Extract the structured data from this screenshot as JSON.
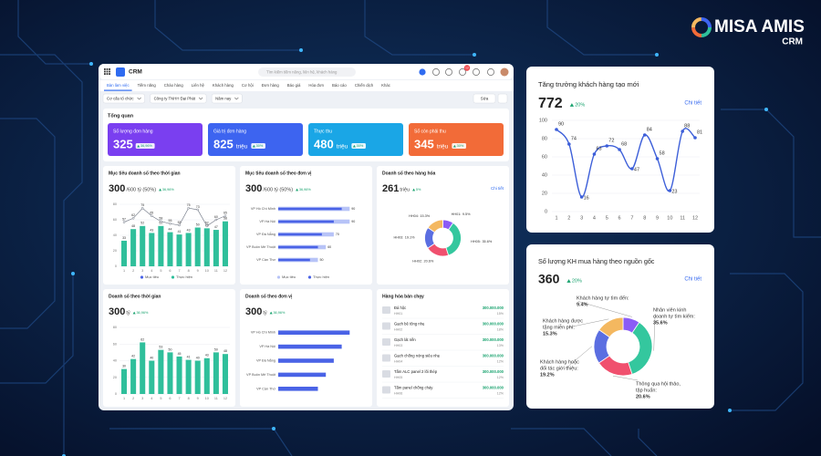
{
  "brand": {
    "name": "MISA AMIS",
    "product": "CRM"
  },
  "dashboard": {
    "app_name": "CRM",
    "search_placeholder": "Tìm kiếm tiềm năng, liên hệ, khách hàng",
    "notification_badge": "12",
    "nav": [
      "Bàn làm việc",
      "Tiềm năng",
      "Chào hàng",
      "Liên hệ",
      "Khách hàng",
      "Cơ hội",
      "Đơn hàng",
      "Báo giá",
      "Hóa đơn",
      "Báo cáo",
      "Chiến dịch",
      "Khác"
    ],
    "filters": [
      "Cơ cấu tổ chức",
      "Công ty TNHH Đại Phát",
      "Năm nay"
    ],
    "edit_button": "Sửa",
    "overview": {
      "title": "Tổng quan",
      "kpis": [
        {
          "label": "Số lượng đơn hàng",
          "value": 325,
          "change": "36,96%",
          "color": "#7a3ff0"
        },
        {
          "label": "Giá trị đơn hàng",
          "value": 825,
          "unit": "triệu",
          "change": "30%",
          "color": "#3d64f0"
        },
        {
          "label": "Thực thu",
          "value": 480,
          "unit": "triệu",
          "change": "30%",
          "color": "#1aa6e6"
        },
        {
          "label": "Số còn phải thu",
          "value": 345,
          "unit": "triệu",
          "change": "30%",
          "color": "#f26b38"
        }
      ]
    },
    "panels": [
      {
        "title": "Mục tiêu doanh số theo thời gian",
        "headline": 300,
        "headline_detail": "/600 tỷ (50%)",
        "change": "36,96%",
        "chart": {
          "type": "bar-line",
          "categories": [
            "1",
            "2",
            "3",
            "4",
            "5",
            "6",
            "7",
            "8",
            "9",
            "10",
            "11",
            "12"
          ],
          "ylim": [
            0,
            80
          ],
          "yticks": [
            0,
            20,
            40,
            60,
            80
          ],
          "series": [
            {
              "name": "Mục tiêu",
              "color": "#4a63e6",
              "values": [
                57,
                62,
                75,
                65,
                58,
                55,
                53,
                75,
                73,
                52,
                60,
                65
              ]
            },
            {
              "name": "Thực hiện",
              "color": "#2fbf9b",
              "values": [
                33,
                48,
                52,
                43,
                52,
                44,
                41,
                43,
                50,
                49,
                47,
                58
              ]
            }
          ]
        }
      },
      {
        "title": "Mục tiêu doanh số theo đơn vị",
        "headline": 300,
        "headline_detail": "/600 tỷ (50%)",
        "change": "36,96%",
        "chart": {
          "type": "hbar",
          "categories": [
            "VP Hồ Chí Minh",
            "VP Hà Nội",
            "VP Đà Nẵng",
            "VP Buôn Mê Thuột",
            "VP Cần Thơ"
          ],
          "xlim": [
            0,
            100
          ],
          "series": [
            {
              "name": "Mục tiêu",
              "color": "#b7c3f7",
              "values": [
                90,
                90,
                70,
                60,
                50
              ]
            },
            {
              "name": "Thực hiện",
              "color": "#4a63e6",
              "values": [
                80,
                70,
                55,
                50,
                40
              ]
            }
          ]
        }
      },
      {
        "title": "Doanh số theo hàng hóa",
        "headline": 261,
        "headline_detail": "triệu",
        "change": "5%",
        "link": "Chi tiết",
        "chart": {
          "type": "donut",
          "segments": [
            {
              "name": "HH01:",
              "value": 9.5,
              "value_label": "9.5%",
              "color": "#8b5cf6"
            },
            {
              "name": "HH05:",
              "value": 35.6,
              "value_label": "35.6%",
              "color": "#34c79e"
            },
            {
              "name": "HH02:",
              "value": 20.6,
              "value_label": "20.6%",
              "color": "#f0506e"
            },
            {
              "name": "HH03:",
              "value": 19.1,
              "value_label": "19.1%",
              "color": "#5b6ee1"
            },
            {
              "name": "HH04:",
              "value": 15.3,
              "value_label": "15.3%",
              "color": "#f4b860"
            }
          ]
        }
      },
      {
        "title": "Doanh số theo thời gian",
        "headline": 300,
        "headline_detail": "tỷ",
        "change": "36,96%",
        "chart": {
          "type": "bar",
          "categories": [
            "1",
            "2",
            "3",
            "4",
            "5",
            "6",
            "7",
            "8",
            "9",
            "10",
            "11",
            "12"
          ],
          "ylim": [
            0,
            80
          ],
          "yticks": [
            0,
            20,
            40,
            60,
            80
          ],
          "series": [
            {
              "color": "#2fbf9b",
              "values": [
                30,
                42,
                62,
                40,
                53,
                50,
                45,
                41,
                40,
                43,
                50,
                48
              ]
            }
          ]
        }
      },
      {
        "title": "Doanh số theo đơn vị",
        "headline": 300,
        "headline_detail": "tỷ",
        "change": "36,96%",
        "chart": {
          "type": "hbar",
          "categories": [
            "VP Hồ Chí Minh",
            "VP Hà Nội",
            "VP Đà Nẵng",
            "VP Buôn Mê Thuột",
            "VP Cần Thơ"
          ],
          "xlim": [
            0,
            100
          ],
          "series": [
            {
              "color": "#4a63e6",
              "values": [
                90,
                80,
                70,
                60,
                50
              ]
            }
          ]
        }
      },
      {
        "title": "Hàng hóa bán chạy",
        "items": [
          {
            "name": "Đá hộc",
            "code": "HH01",
            "amount": "300.000.000",
            "share": "15%"
          },
          {
            "name": "Gạch bê tông nhẹ",
            "code": "HH02",
            "amount": "300.000.000",
            "share": "18%"
          },
          {
            "name": "Gạch lát nền",
            "code": "HH03",
            "amount": "300.000.000",
            "share": "13%"
          },
          {
            "name": "Gạch chống nóng siêu nhẹ",
            "code": "HH04",
            "amount": "300.000.000",
            "share": "12%"
          },
          {
            "name": "Tấm ALC panel 2 lõi thép",
            "code": "HH05",
            "amount": "300.000.000",
            "share": "12%"
          },
          {
            "name": "Tấm panel chống cháy",
            "code": "HH06",
            "amount": "300.000.000",
            "share": "12%"
          }
        ]
      }
    ]
  },
  "growth_card": {
    "title": "Tăng trưởng khách hàng tạo mới",
    "total": 772,
    "change": "20%",
    "link": "Chi tiết",
    "chart": {
      "type": "line",
      "categories": [
        "1",
        "2",
        "3",
        "4",
        "5",
        "6",
        "7",
        "8",
        "9",
        "10",
        "11",
        "12"
      ],
      "values": [
        90,
        74,
        16,
        63,
        72,
        68,
        47,
        84,
        58,
        23,
        88,
        81
      ],
      "color": "#3d5fd9",
      "ylim": [
        0,
        100
      ],
      "yticks": [
        0,
        20,
        40,
        60,
        80,
        100
      ],
      "grid": true
    }
  },
  "source_card": {
    "title": "Số lượng KH mua hàng theo nguồn gốc",
    "total": 360,
    "change": "20%",
    "link": "Chi tiết",
    "chart": {
      "type": "donut",
      "segments": [
        {
          "name_lines": [
            "Khách hàng tự tìm đến:"
          ],
          "value": 9.4,
          "value_label": "9.4%",
          "color": "#8b5cf6"
        },
        {
          "name_lines": [
            "Nhân viên kinh",
            "doanh tự tìm kiếm:"
          ],
          "value": 35.6,
          "value_label": "35.6%",
          "color": "#34c79e"
        },
        {
          "name_lines": [
            "Thông qua hội thảo,",
            "tập huấn:"
          ],
          "value": 20.6,
          "value_label": "20.6%",
          "color": "#f0506e"
        },
        {
          "name_lines": [
            "Khách hàng hoặc",
            "đối tác giới thiệu:"
          ],
          "value": 19.2,
          "value_label": "19.2%",
          "color": "#5b6ee1"
        },
        {
          "name_lines": [
            "Khách hàng được",
            "tặng miễn phí:"
          ],
          "value": 15.3,
          "value_label": "15.3%",
          "color": "#f4b860"
        }
      ]
    }
  }
}
